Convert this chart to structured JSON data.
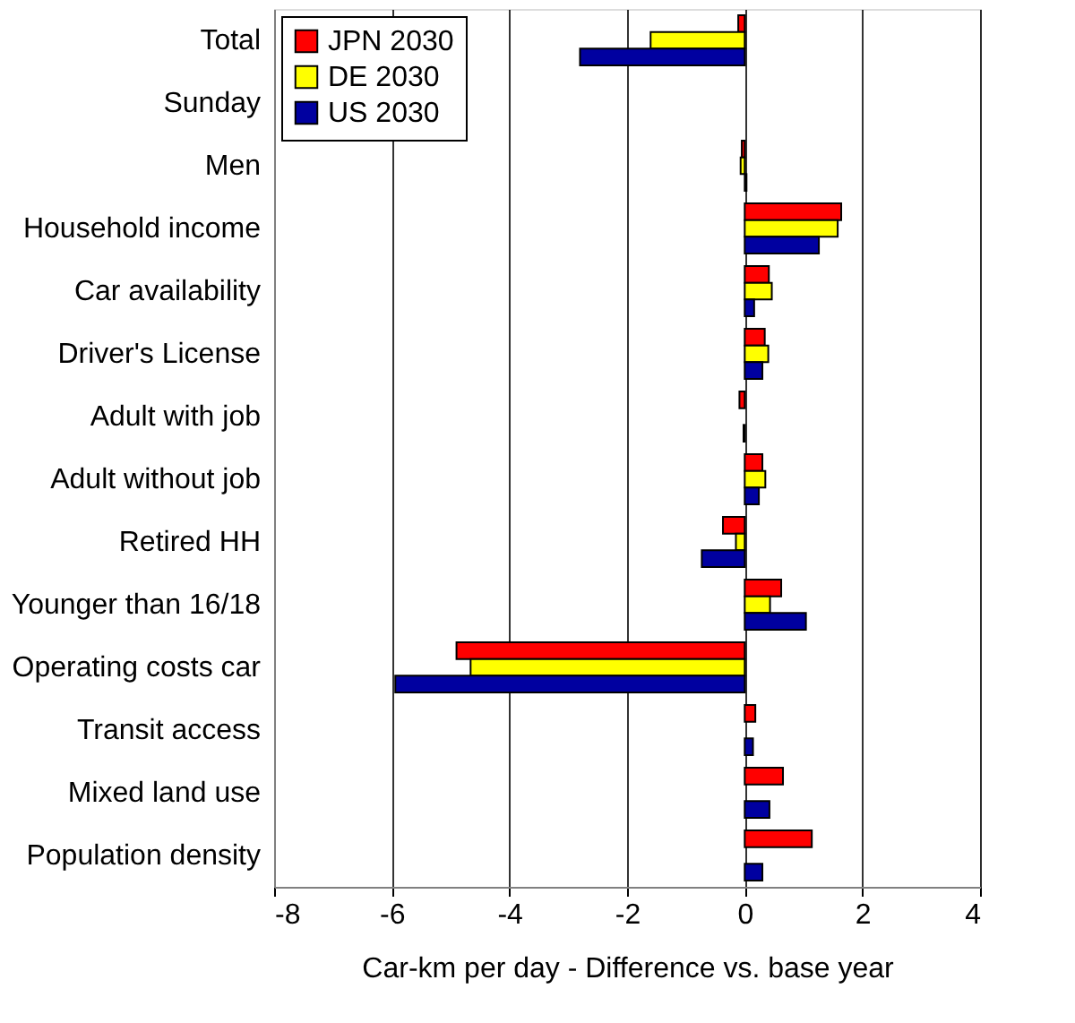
{
  "chart_data": {
    "type": "bar",
    "orientation": "horizontal",
    "xlabel": "Car-km per day - Difference vs. base year",
    "categories": [
      "Total",
      "Sunday",
      "Men",
      "Household income",
      "Car availability",
      "Driver's License",
      "Adult with job",
      "Adult without job",
      "Retired HH",
      "Younger than 16/18",
      "Operating costs car",
      "Transit access",
      "Mixed land use",
      "Population density"
    ],
    "series": [
      {
        "name": "JPN 2030",
        "color": "#ff0000",
        "values": [
          -0.11,
          null,
          -0.05,
          1.64,
          0.41,
          0.34,
          -0.09,
          0.3,
          -0.37,
          0.62,
          -4.9,
          0.18,
          0.65,
          1.14
        ]
      },
      {
        "name": "DE 2030",
        "color": "#ffff00",
        "values": [
          -1.6,
          null,
          -0.07,
          1.58,
          0.46,
          0.4,
          null,
          0.35,
          -0.15,
          0.43,
          -4.66,
          null,
          null,
          null
        ]
      },
      {
        "name": "US 2030",
        "color": "#0000a0",
        "values": [
          -2.8,
          null,
          0.03,
          1.26,
          0.16,
          0.3,
          -0.02,
          0.24,
          -0.73,
          1.04,
          -5.94,
          0.14,
          0.42,
          0.3
        ]
      }
    ],
    "xlim": [
      -8,
      4
    ],
    "xticks": [
      -8,
      -6,
      -4,
      -2,
      0,
      2,
      4
    ],
    "grid": "x",
    "legend": "top left"
  }
}
